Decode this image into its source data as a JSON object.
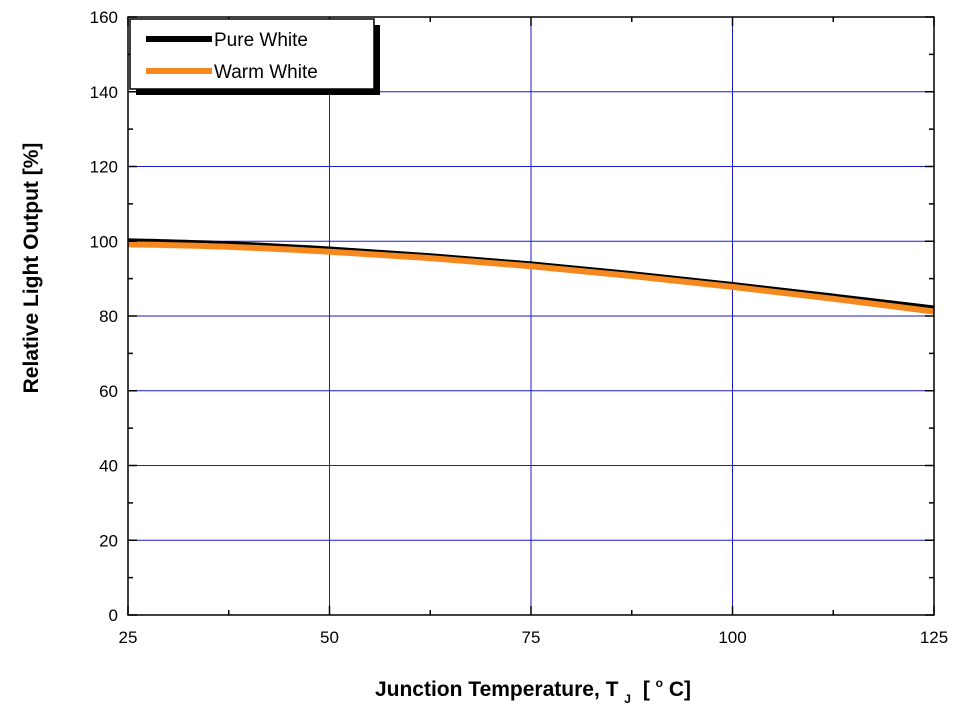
{
  "chart_data": {
    "type": "line",
    "title": "",
    "xlabel": "Junction Temperature, T",
    "xlabel_subscript": "J",
    "xlabel_units": "[",
    "xlabel_units_sup": "o",
    "xlabel_units_tail": "C]",
    "ylabel": "Relative Light Output [%]",
    "xlim": [
      25,
      125
    ],
    "ylim": [
      0,
      160
    ],
    "x_ticks": [
      25,
      50,
      75,
      100,
      125
    ],
    "x_tick_labels": [
      "25",
      "50",
      "75",
      "100",
      "125"
    ],
    "y_ticks": [
      0,
      20,
      40,
      60,
      80,
      100,
      120,
      140,
      160
    ],
    "y_tick_labels": [
      "0",
      "20",
      "40",
      "60",
      "80",
      "100",
      "120",
      "140",
      "160"
    ],
    "grid": true,
    "legend_position": "top-left",
    "series": [
      {
        "name": "Pure White",
        "color": "#000000",
        "x": [
          25,
          37.5,
          50,
          62.5,
          75,
          87.5,
          100,
          112.5,
          125
        ],
        "values": [
          100,
          99.2,
          97.8,
          96.0,
          93.8,
          91.2,
          88.3,
          85.2,
          82.0
        ]
      },
      {
        "name": "Warm White",
        "color": "#f5891f",
        "x": [
          25,
          37.5,
          50,
          62.5,
          75,
          87.5,
          100,
          112.5,
          125
        ],
        "values": [
          99.2,
          98.5,
          97.2,
          95.5,
          93.3,
          90.7,
          87.8,
          84.6,
          81.2
        ]
      }
    ]
  }
}
